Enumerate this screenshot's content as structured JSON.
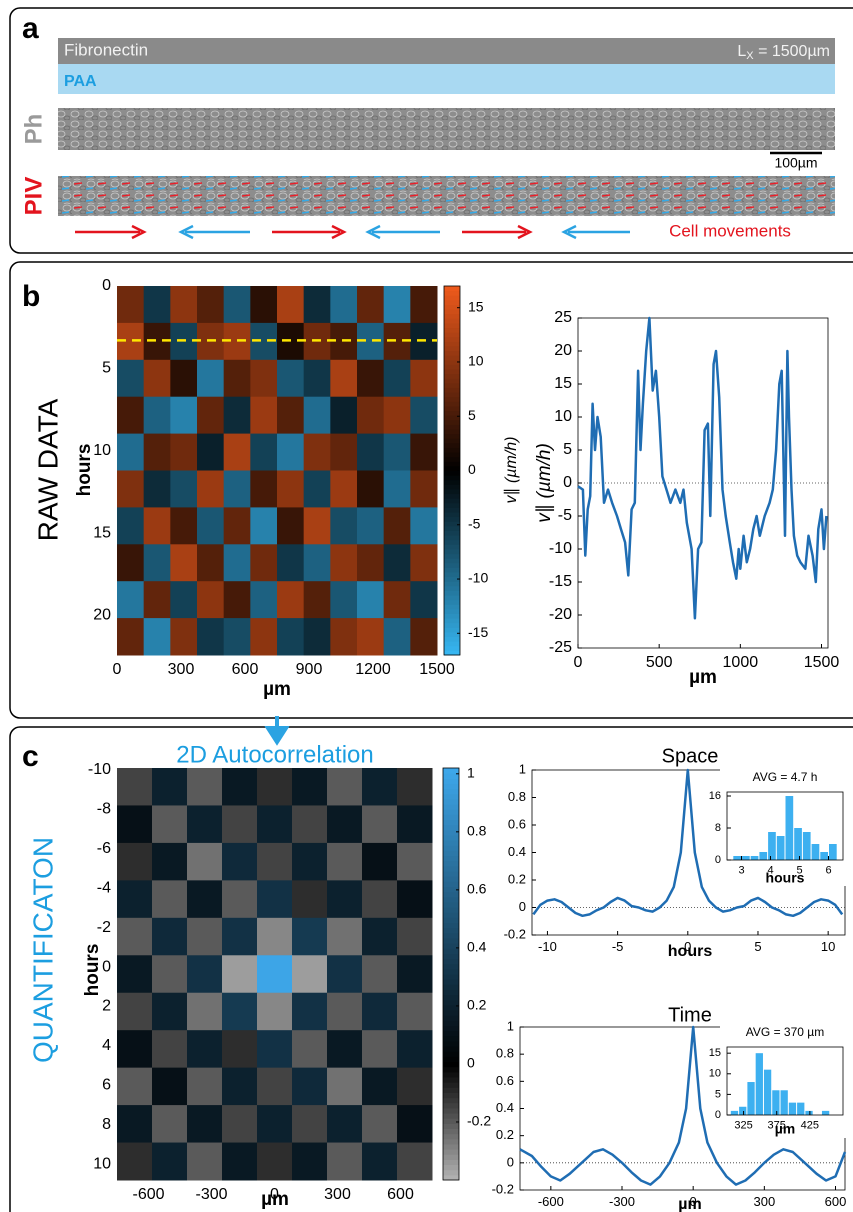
{
  "panels": {
    "a": {
      "label": "a",
      "fibronectin": "Fibronectin",
      "length_symbol": "L",
      "length_subscript": "X",
      "length_value": " = 1500µm",
      "paa": "PAA",
      "ph": "Ph",
      "scalebar": "100µm",
      "piv": "PIV",
      "cell_movements": "Cell movements"
    },
    "b": {
      "label": "b",
      "side_label": "RAW DATA"
    },
    "c": {
      "label": "c",
      "side_label": "QUANTIFICATON"
    }
  },
  "chart_data": [
    {
      "type": "heatmap",
      "xlabel": "µm",
      "ylabel": "hours",
      "clabel": "v∥ (µm/h)",
      "xlim": [
        0,
        1500
      ],
      "xticks": [
        0,
        300,
        600,
        900,
        1200,
        1500
      ],
      "ylim": [
        0,
        22.4
      ],
      "yticks": [
        0,
        5,
        10,
        15,
        20
      ],
      "y_reversed": true,
      "clim": [
        -17,
        17
      ],
      "cticks": [
        -15,
        -10,
        -5,
        0,
        5,
        10,
        15
      ],
      "colormap": {
        "negative": "#37b8f4",
        "zero": "#000000",
        "positive": "#ef5a1c"
      },
      "marker_line": 3.3,
      "marker_color": "#ffe600",
      "values": [
        [
          8,
          -5,
          10,
          6,
          -8,
          3,
          12,
          -4,
          -10,
          7,
          -12,
          5
        ],
        [
          12,
          4,
          -6,
          9,
          11,
          -7,
          2,
          8,
          5,
          -9,
          6,
          -3
        ],
        [
          -7,
          10,
          3,
          -11,
          6,
          9,
          -8,
          -5,
          12,
          4,
          -6,
          10
        ],
        [
          5,
          -9,
          -12,
          7,
          -4,
          11,
          6,
          -10,
          -3,
          8,
          10,
          -7
        ],
        [
          -10,
          6,
          8,
          -3,
          12,
          -6,
          -11,
          9,
          7,
          -5,
          -8,
          4
        ],
        [
          9,
          -4,
          -7,
          11,
          -9,
          5,
          10,
          -6,
          11,
          3,
          -10,
          8
        ],
        [
          -6,
          11,
          5,
          -8,
          7,
          -12,
          4,
          12,
          -7,
          -9,
          6,
          -11
        ],
        [
          4,
          -8,
          12,
          6,
          -10,
          8,
          -5,
          -9,
          10,
          7,
          -4,
          9
        ],
        [
          -11,
          7,
          -6,
          10,
          5,
          -9,
          11,
          6,
          -8,
          -12,
          8,
          -5
        ],
        [
          7,
          -12,
          9,
          -5,
          -7,
          10,
          -6,
          -4,
          9,
          11,
          -9,
          6
        ]
      ]
    },
    {
      "type": "line",
      "xlabel": "µm",
      "ylabel": "v∥ (µm/h)",
      "color": "#1f6db3",
      "reference_line": 0,
      "xlim": [
        0,
        1540
      ],
      "xticks": [
        0,
        500,
        1000,
        1500
      ],
      "ylim": [
        -25,
        25
      ],
      "yticks": [
        -25,
        -20,
        -15,
        -10,
        -5,
        0,
        5,
        10,
        15,
        20,
        25
      ],
      "x": [
        0,
        30,
        45,
        60,
        75,
        90,
        105,
        120,
        140,
        160,
        185,
        210,
        240,
        265,
        290,
        310,
        330,
        350,
        370,
        385,
        400,
        420,
        440,
        460,
        480,
        500,
        520,
        545,
        570,
        600,
        630,
        650,
        670,
        700,
        720,
        740,
        760,
        780,
        800,
        815,
        835,
        850,
        870,
        890,
        910,
        935,
        955,
        975,
        990,
        1000,
        1020,
        1040,
        1060,
        1080,
        1100,
        1120,
        1150,
        1180,
        1200,
        1220,
        1240,
        1255,
        1275,
        1290,
        1300,
        1315,
        1330,
        1350,
        1370,
        1400,
        1420,
        1445,
        1465,
        1480,
        1500,
        1515,
        1530
      ],
      "values": [
        -0.5,
        -1,
        -11,
        -4,
        -2,
        12,
        5,
        10,
        7,
        -3,
        -1,
        -3,
        -5,
        -7,
        -9,
        -14,
        -4,
        -3,
        17,
        5,
        12,
        20,
        25,
        14,
        17,
        10,
        1,
        -1,
        -3,
        -1,
        -3,
        -1,
        -6,
        -10,
        -20.5,
        -10,
        -9,
        8,
        9,
        -5,
        18,
        20,
        13,
        -1,
        -5,
        -9,
        -12,
        -14.5,
        -10,
        -13,
        -8,
        -12,
        -10,
        -7,
        -5,
        -8,
        -5,
        -3,
        -1,
        5,
        15,
        17,
        -8,
        20,
        10,
        -1,
        -8,
        -11,
        -12,
        -13,
        -8,
        -11,
        -15,
        -7,
        -4,
        -10,
        -5
      ]
    },
    {
      "type": "heatmap",
      "title": "2D Autocorrelation",
      "xlabel": "µm",
      "ylabel": "hours",
      "xlim": [
        -750,
        750
      ],
      "xticks": [
        -600,
        -300,
        0,
        300,
        600
      ],
      "ylim": [
        -10.1,
        10.8
      ],
      "yticks": [
        -10,
        -8,
        -6,
        -4,
        -2,
        0,
        2,
        4,
        6,
        8,
        10
      ],
      "y_reversed": true,
      "clim": [
        -0.4,
        1.02
      ],
      "cticks": [
        -0.2,
        0,
        0.2,
        0.4,
        0.6,
        0.8,
        1
      ],
      "colormap": {
        "negative": "#b4b4b4",
        "zero": "#000000",
        "positive": "#3ea8ec"
      },
      "values": [
        [
          -0.15,
          0.2,
          -0.2,
          0.15,
          -0.1,
          0.15,
          -0.2,
          0.2,
          -0.1
        ],
        [
          0.1,
          -0.2,
          0.2,
          -0.15,
          0.2,
          -0.15,
          0.15,
          -0.2,
          0.15
        ],
        [
          -0.1,
          0.15,
          -0.25,
          0.25,
          -0.15,
          0.2,
          -0.2,
          0.1,
          -0.2
        ],
        [
          0.2,
          -0.2,
          0.15,
          -0.2,
          0.3,
          -0.1,
          0.2,
          -0.15,
          0.1
        ],
        [
          -0.2,
          0.25,
          -0.2,
          0.3,
          -0.3,
          0.35,
          -0.25,
          0.2,
          -0.15
        ],
        [
          0.15,
          -0.2,
          0.3,
          -0.35,
          1,
          -0.35,
          0.3,
          -0.2,
          0.15
        ],
        [
          -0.15,
          0.2,
          -0.25,
          0.35,
          -0.3,
          0.3,
          -0.2,
          0.25,
          -0.2
        ],
        [
          0.1,
          -0.15,
          0.2,
          -0.1,
          0.3,
          -0.2,
          0.15,
          -0.2,
          0.2
        ],
        [
          -0.2,
          0.1,
          -0.2,
          0.2,
          -0.15,
          0.25,
          -0.25,
          0.15,
          -0.1
        ],
        [
          0.15,
          -0.2,
          0.15,
          -0.15,
          0.2,
          -0.15,
          0.2,
          -0.2,
          0.1
        ],
        [
          -0.1,
          0.2,
          -0.2,
          0.15,
          -0.1,
          0.15,
          -0.2,
          0.2,
          -0.15
        ]
      ]
    },
    {
      "type": "line",
      "title": "Space",
      "xlabel": "hours",
      "color": "#1f6db3",
      "reference_line": 0,
      "xlim": [
        -11.1,
        11.2
      ],
      "xticks": [
        -10,
        -5,
        0,
        5,
        10
      ],
      "ylim": [
        -0.2,
        1
      ],
      "yticks": [
        -0.2,
        0,
        0.2,
        0.4,
        0.6,
        0.8,
        1
      ],
      "x": [
        -11,
        -10.5,
        -10,
        -9.5,
        -9,
        -8.5,
        -8,
        -7.5,
        -7,
        -6.5,
        -6,
        -5.5,
        -5,
        -4.5,
        -4,
        -3.5,
        -3,
        -2.5,
        -2,
        -1.5,
        -1,
        -0.5,
        0,
        0.5,
        1,
        1.5,
        2,
        2.5,
        3,
        3.5,
        4,
        4.5,
        5,
        5.5,
        6,
        6.5,
        7,
        7.5,
        8,
        8.5,
        9,
        9.5,
        10,
        10.5,
        11
      ],
      "values": [
        -0.05,
        0.02,
        0.05,
        0.06,
        0.04,
        0,
        -0.04,
        -0.06,
        -0.05,
        -0.02,
        0,
        0.04,
        0.07,
        0.05,
        0.01,
        0,
        -0.02,
        -0.03,
        0,
        0.05,
        0.15,
        0.4,
        1,
        0.4,
        0.15,
        0.05,
        0,
        -0.03,
        -0.02,
        0,
        0.01,
        0.05,
        0.07,
        0.04,
        0,
        -0.02,
        -0.05,
        -0.06,
        -0.04,
        0,
        0.04,
        0.06,
        0.05,
        0.02,
        -0.05
      ]
    },
    {
      "type": "histogram",
      "title": "AVG = 4.7 h",
      "xlabel": "hours",
      "color": "#3db0f0",
      "xlim": [
        2.5,
        6.5
      ],
      "xticks": [
        3,
        4,
        5,
        6
      ],
      "ylim": [
        0,
        17
      ],
      "yticks": [
        0,
        8,
        16
      ],
      "bins": [
        2.7,
        3.0,
        3.3,
        3.6,
        3.9,
        4.2,
        4.5,
        4.8,
        5.1,
        5.4,
        5.7,
        6.0,
        6.3
      ],
      "values": [
        1,
        1,
        1,
        2,
        7,
        6,
        16,
        8,
        7,
        4,
        2,
        4
      ]
    },
    {
      "type": "line",
      "title": "Time",
      "xlabel": "µm",
      "color": "#1f6db3",
      "reference_line": 0,
      "xlim": [
        -730,
        640
      ],
      "xticks": [
        -600,
        -300,
        0,
        300,
        600
      ],
      "ylim": [
        -0.2,
        1
      ],
      "yticks": [
        -0.2,
        0,
        0.2,
        0.4,
        0.6,
        0.8,
        1
      ],
      "x": [
        -730,
        -680,
        -640,
        -600,
        -560,
        -520,
        -470,
        -420,
        -380,
        -340,
        -300,
        -260,
        -220,
        -180,
        -140,
        -100,
        -60,
        -30,
        0,
        30,
        60,
        100,
        140,
        180,
        220,
        260,
        300,
        340,
        380,
        420,
        470,
        520,
        560,
        600,
        640
      ],
      "values": [
        0.1,
        0.05,
        -0.03,
        -0.1,
        -0.13,
        -0.08,
        0,
        0.08,
        0.1,
        0.06,
        0,
        -0.07,
        -0.13,
        -0.16,
        -0.1,
        0,
        0.15,
        0.4,
        1,
        0.4,
        0.15,
        0,
        -0.1,
        -0.16,
        -0.13,
        -0.07,
        0,
        0.06,
        0.1,
        0.08,
        0,
        -0.08,
        -0.13,
        -0.1,
        0.08
      ]
    },
    {
      "type": "histogram",
      "title": "AVG = 370 µm",
      "xlabel": "µm",
      "color": "#3db0f0",
      "xlim": [
        300,
        475
      ],
      "xticks": [
        325,
        375,
        425
      ],
      "ylim": [
        0,
        16.5
      ],
      "yticks": [
        0,
        5,
        10,
        15
      ],
      "bins": [
        305,
        317.5,
        330,
        342.5,
        355,
        367.5,
        380,
        392.5,
        405,
        417.5,
        430,
        442.5,
        455
      ],
      "values": [
        1,
        2,
        8,
        15,
        11,
        6,
        6,
        3,
        3,
        1,
        0,
        1
      ]
    }
  ]
}
